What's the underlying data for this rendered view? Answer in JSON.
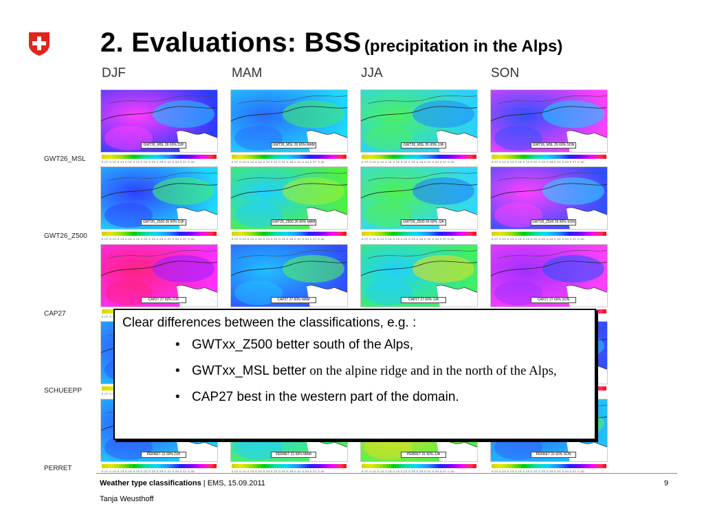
{
  "title": {
    "main": "2. Evaluations: BSS",
    "sub": "(precipitation in the Alps)"
  },
  "seasons": [
    "DJF",
    "MAM",
    "JJA",
    "SON"
  ],
  "rows": [
    {
      "label": "GWT26_MSL",
      "captions": [
        "GWT26_MSL 26 60% DJF",
        "GWT26_MSL 26 60% MAM",
        "GWT26_MSL 26 60% JJA",
        "GWT26_MSL 26 60% SON"
      ]
    },
    {
      "label": "GWT26_Z500",
      "captions": [
        "GWT26_Z500 26 60% DJF",
        "GWT26_Z500 26 60% MAM",
        "GWT26_Z500 26 60% JJA",
        "GWT26_Z500 26 60% SON"
      ]
    },
    {
      "label": "CAP27",
      "captions": [
        "CAP27 27 60% DJF",
        "CAP27 27 60% MAM",
        "CAP27 27 60% JJA",
        "CAP27 27 60% SON"
      ]
    },
    {
      "label": "SCHUEEPP",
      "captions": [
        "",
        "",
        "",
        ""
      ]
    },
    {
      "label": "PERRET",
      "captions": [
        "PERRET 31 60% DJF",
        "PERRET 31 60% MAM",
        "PERRET 31 60% JJA",
        "PERRET 31 60% SON"
      ]
    }
  ],
  "colorbar_ticks": "0.07 0.10 0.13 0.16 0.19 0.22 0.25 0.28 0.31 0.34 0.37 0.40",
  "callout": {
    "intro": "Clear differences between the classifications, e.g. :",
    "bullets": [
      {
        "sans": "GWTxx_Z500 better south of the Alps,",
        "serif": ""
      },
      {
        "sans": "GWTxx_MSL better ",
        "serif": "on the alpine ridge and in the north of the Alps,"
      },
      {
        "sans": "CAP27 best in the western part of the domain.",
        "serif": ""
      }
    ]
  },
  "footer": {
    "project": "Weather type classifications",
    "rest": " | EMS, 15.09.2011",
    "page": "9",
    "author": "Tanja Weusthoff"
  },
  "colors": {
    "logo_red": "#e1251b",
    "bullet": "#000000"
  },
  "icons": {
    "logo": "swiss-cross-logo"
  }
}
